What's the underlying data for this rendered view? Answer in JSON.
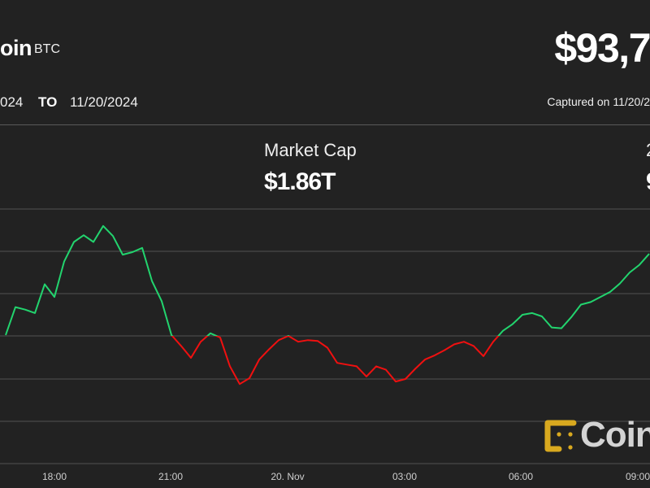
{
  "header": {
    "name": "oin",
    "ticker": "BTC",
    "price": "$93,7",
    "from_date": "024",
    "to_label": "TO",
    "to_date": "11/20/2024",
    "captured": "Captured on 11/20/2"
  },
  "stats": [
    {
      "label": "Market Cap",
      "value": "$1.86T"
    },
    {
      "label": "2",
      "value": "9"
    }
  ],
  "logo": {
    "text": "Coin"
  },
  "colors": {
    "up": "#22d46e",
    "down": "#f01010",
    "background": "#222222",
    "grid": "#4a4a4a",
    "logo_gold": "#d9a91f"
  },
  "chart_data": {
    "type": "line",
    "grid": true,
    "x_tick_labels": [
      "18:00",
      "21:00",
      "20. Nov",
      "03:00",
      "06:00",
      "09:00"
    ],
    "x": [
      "16:45",
      "17:00",
      "17:15",
      "17:30",
      "17:45",
      "18:00",
      "18:15",
      "18:30",
      "18:45",
      "19:00",
      "19:15",
      "19:30",
      "19:45",
      "20:00",
      "20:15",
      "20:30",
      "20:45",
      "21:00",
      "21:15",
      "21:30",
      "21:45",
      "22:00",
      "22:15",
      "22:30",
      "22:45",
      "23:00",
      "23:15",
      "23:30",
      "23:45",
      "00:00",
      "00:15",
      "00:30",
      "00:45",
      "01:00",
      "01:15",
      "01:30",
      "01:45",
      "02:00",
      "02:15",
      "02:30",
      "02:45",
      "03:00",
      "03:15",
      "03:30",
      "03:45",
      "04:00",
      "04:15",
      "04:30",
      "04:45",
      "05:00",
      "05:15",
      "05:30",
      "05:45",
      "06:00",
      "06:15",
      "06:30",
      "06:45",
      "07:00",
      "07:15",
      "07:30",
      "07:45",
      "08:00",
      "08:15",
      "08:30",
      "08:45",
      "09:00",
      "09:15"
    ],
    "values": [
      92820,
      93150,
      93120,
      93080,
      93420,
      93270,
      93690,
      93920,
      94000,
      93920,
      94110,
      93990,
      93770,
      93800,
      93850,
      93460,
      93220,
      92820,
      92690,
      92550,
      92740,
      92840,
      92790,
      92450,
      92240,
      92310,
      92530,
      92650,
      92760,
      92810,
      92740,
      92760,
      92750,
      92670,
      92490,
      92470,
      92450,
      92330,
      92450,
      92410,
      92270,
      92300,
      92420,
      92530,
      92580,
      92640,
      92710,
      92740,
      92690,
      92570,
      92740,
      92870,
      92950,
      93060,
      93080,
      93040,
      92910,
      92900,
      93030,
      93180,
      93210,
      93270,
      93330,
      93430,
      93560,
      93650,
      93780
    ]
  }
}
